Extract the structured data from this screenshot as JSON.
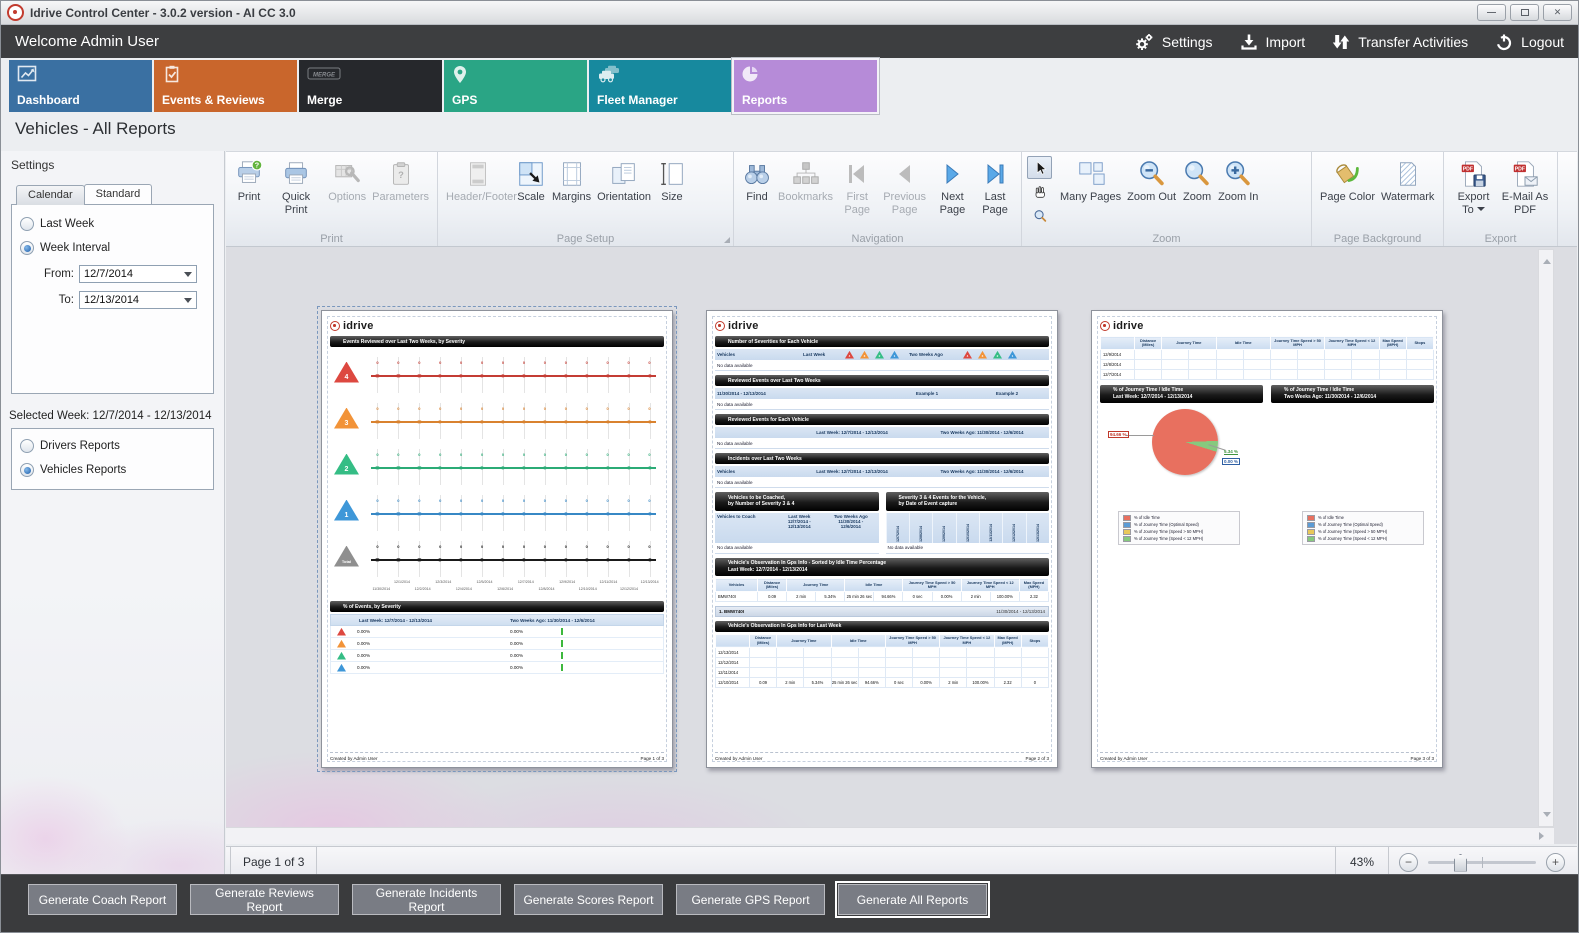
{
  "window": {
    "title": "Idrive Control Center - 3.0.2 version - AI CC 3.0"
  },
  "header": {
    "welcome": "Welcome Admin User",
    "settings": "Settings",
    "import": "Import",
    "transfer": "Transfer Activities",
    "logout": "Logout"
  },
  "tabs": [
    {
      "label": "Dashboard",
      "color": "#3a70a2",
      "selected": false
    },
    {
      "label": "Events & Reviews",
      "color": "#c9662c",
      "selected": false
    },
    {
      "label": "Merge",
      "color": "#26282c",
      "selected": false,
      "icon_text": "MERGE"
    },
    {
      "label": "GPS",
      "color": "#2aa585",
      "selected": false
    },
    {
      "label": "Fleet Manager",
      "color": "#17899e",
      "selected": false
    },
    {
      "label": "Reports",
      "color": "#b68bd8",
      "selected": true
    }
  ],
  "page_title": "Vehicles - All Reports",
  "sidebar": {
    "title": "Settings",
    "tabs": [
      {
        "label": "Calendar",
        "active": false
      },
      {
        "label": "Standard",
        "active": true
      }
    ],
    "options": [
      {
        "label": "Last Week",
        "selected": false
      },
      {
        "label": "Week Interval",
        "selected": true
      }
    ],
    "from_label": "From:",
    "from_value": "12/7/2014",
    "to_label": "To:",
    "to_value": "12/13/2014",
    "selected_week_label": "Selected Week:",
    "selected_week_value": "12/7/2014 - 12/13/2014",
    "report_types": [
      {
        "label": "Drivers Reports",
        "selected": false
      },
      {
        "label": "Vehicles Reports",
        "selected": true
      }
    ]
  },
  "ribbon": {
    "groups": [
      {
        "label": "Print",
        "items": [
          "Print",
          "Quick Print",
          "Options",
          "Parameters"
        ]
      },
      {
        "label": "Page Setup",
        "items": [
          "Header/Footer",
          "Scale",
          "Margins",
          "Orientation",
          "Size"
        ]
      },
      {
        "label": "Navigation",
        "items": [
          "Find",
          "Bookmarks",
          "First Page",
          "Previous Page",
          "Next Page",
          "Last Page"
        ]
      },
      {
        "label": "Zoom",
        "items": [
          "Many Pages",
          "Zoom Out",
          "Zoom",
          "Zoom In"
        ]
      },
      {
        "label": "Page Background",
        "items": [
          "Page Color",
          "Watermark"
        ]
      },
      {
        "label": "Export",
        "items": [
          "Export To",
          "E-Mail As PDF"
        ]
      }
    ]
  },
  "statusbar": {
    "page_text": "Page 1 of 3",
    "zoom_value": "43%"
  },
  "footer_buttons": [
    {
      "label": "Generate Coach Report",
      "focused": false
    },
    {
      "label": "Generate Reviews Report",
      "focused": false
    },
    {
      "label": "Generate Incidents Report",
      "focused": false
    },
    {
      "label": "Generate Scores Report",
      "focused": false
    },
    {
      "label": "Generate GPS Report",
      "focused": false
    },
    {
      "label": "Generate All Reports",
      "focused": true
    }
  ],
  "preview": {
    "page1": {
      "logo": "idrive",
      "band_events": "Events Reviewed over Last Two Weeks, by Severity",
      "point_label": "0",
      "point_count": 14,
      "severities": [
        {
          "level": "4",
          "color": "#dd4840",
          "line": "#c43c34"
        },
        {
          "level": "3",
          "color": "#f29338",
          "line": "#d9822f"
        },
        {
          "level": "2",
          "color": "#35bd85",
          "line": "#2bab76"
        },
        {
          "level": "1",
          "color": "#3e97d8",
          "line": "#3788c5"
        },
        {
          "level": "Total",
          "color": "#8f8f8f",
          "line": "#1a1a1a"
        }
      ],
      "dates": [
        "11/30/2014",
        "12/1/2014",
        "12/2/2014",
        "12/3/2014",
        "12/4/2014",
        "12/5/2014",
        "12/6/2014",
        "12/7/2014",
        "12/8/2014",
        "12/9/2014",
        "12/10/2014",
        "12/11/2014",
        "12/12/2014",
        "12/13/2014"
      ],
      "band_pct": "% of Events, by Severity",
      "table": {
        "col_last": "Last Week: 12/7/2014 - 12/13/2014",
        "col_two": "Two Weeks Ago: 11/30/2014 - 12/6/2014",
        "rows": [
          {
            "color": "#dd4840",
            "last": "0.00%",
            "two": "0.00%"
          },
          {
            "color": "#f29338",
            "last": "0.00%",
            "two": "0.00%"
          },
          {
            "color": "#35bd85",
            "last": "0.00%",
            "two": "0.00%"
          },
          {
            "color": "#3e97d8",
            "last": "0.00%",
            "two": "0.00%"
          }
        ]
      },
      "footer_left": "Created by Admin User",
      "footer_right": "Page 1 of 3"
    },
    "page2": {
      "logo": "idrive",
      "s1": {
        "title": "Number of Severities for Each Vehicle",
        "vehicles": "Vehicles",
        "last_week": "Last Week",
        "two_weeks": "Two Weeks Ago",
        "triangles": [
          {
            "label": "4",
            "color": "#dd4840"
          },
          {
            "label": "3",
            "color": "#f29338"
          },
          {
            "label": "2",
            "color": "#35bd85"
          },
          {
            "label": "1",
            "color": "#3e97d8"
          }
        ],
        "nodata": "No data available"
      },
      "s2": {
        "title": "Reviewed Events over Last Two Weeks",
        "range": "11/30/2014 - 12/13/2014",
        "example1": "Example 1",
        "example2": "Example 2",
        "nodata": "No data available"
      },
      "s3": {
        "title": "Reviewed Events for Each Vehicle",
        "last": "Last Week: 12/7/2014 - 12/13/2014",
        "two": "Two Weeks Ago: 11/30/2014 - 12/6/2014",
        "nodata": "No data available"
      },
      "s4": {
        "title": "Incidents over Last Two Weeks",
        "vehicles": "Vehicles",
        "last": "Last Week: 12/7/2014 - 12/13/2014",
        "two": "Two Weeks Ago: 11/30/2014 - 12/6/2014",
        "nodata": "No data available"
      },
      "s5": {
        "title1": "Vehicles to be Coached,",
        "title2": "by Number of Severity 3 & 4",
        "col1": "Vehicles to Coach",
        "col2": "Last Week\n12/7/2014 -\n12/13/2014",
        "col3": "Two Weeks Ago\n11/30/2014 -\n12/6/2014",
        "nodata": "No data available"
      },
      "s6": {
        "title1": "Severity 3 & 4 Events for the Vehicle,",
        "title2": "by Date of Event capture",
        "dates": [
          "12/7/2014",
          "12/8/2014",
          "12/9/2014",
          "12/10/2014",
          "12/11/2014",
          "12/12/2014",
          "12/13/2014"
        ],
        "nodata": "No data available"
      },
      "s7": {
        "title1": "Vehicle's Observation In Gps Info - Sorted by Idle Time Percentage",
        "title2": "Last Week: 12/7/2014 - 12/13/2014",
        "header": [
          {
            "label": "Vehicles",
            "span": 1
          },
          {
            "label": "Distance (Miles)",
            "span": 1
          },
          {
            "label": "Journey Time",
            "span": 2
          },
          {
            "label": "Idle Time",
            "span": 2
          },
          {
            "label": "Journey Time Speed > 50 MPH",
            "span": 2
          },
          {
            "label": "Journey Time Speed < 12 MPH",
            "span": 2
          },
          {
            "label": "Max Speed (MPH)",
            "span": 1
          }
        ],
        "rows": [
          [
            "BMW740I",
            "0.09",
            "2 min",
            "5.34%",
            "25 min 26 sec",
            "94.66%",
            "0 sec",
            "0.00%",
            "2 min",
            "100.00%",
            "2.32"
          ]
        ]
      },
      "s8": {
        "left": "1. BMW740I",
        "right": "11/30/2014 - 12/13/2014"
      },
      "s9": {
        "title": "Vehicle's Observation In Gps Info for Last Week",
        "header": [
          {
            "label": "",
            "span": 1
          },
          {
            "label": "Distance (Miles)",
            "span": 1
          },
          {
            "label": "Journey Time",
            "span": 2
          },
          {
            "label": "Idle Time",
            "span": 2
          },
          {
            "label": "Journey Time Speed > 50 MPH",
            "span": 2
          },
          {
            "label": "Journey Time Speed < 12 MPH",
            "span": 2
          },
          {
            "label": "Max Speed (MPH)",
            "span": 1
          },
          {
            "label": "Stops",
            "span": 1
          }
        ],
        "rows": [
          [
            "12/13/2014",
            "",
            "",
            "",
            "",
            "",
            "",
            "",
            "",
            "",
            "",
            ""
          ],
          [
            "12/12/2014",
            "",
            "",
            "",
            "",
            "",
            "",
            "",
            "",
            "",
            "",
            ""
          ],
          [
            "12/11/2014",
            "",
            "",
            "",
            "",
            "",
            "",
            "",
            "",
            "",
            "",
            ""
          ],
          [
            "12/10/2014",
            "0.09",
            "2 min",
            "5.34%",
            "25 min 26 sec",
            "94.66%",
            "0 sec",
            "0.00%",
            "2 min",
            "100.00%",
            "2.32",
            "0"
          ]
        ]
      },
      "footer_left": "Created by Admin User",
      "footer_right": "Page 2 of 3"
    },
    "page3": {
      "logo": "idrive",
      "table": {
        "header": [
          {
            "label": "",
            "span": 1
          },
          {
            "label": "Distance (Miles)",
            "span": 1
          },
          {
            "label": "Journey Time",
            "span": 2
          },
          {
            "label": "Idle Time",
            "span": 2
          },
          {
            "label": "Journey Time Speed > 50 MPH",
            "span": 2
          },
          {
            "label": "Journey Time Speed < 12 MPH",
            "span": 2
          },
          {
            "label": "Max Speed (MPH)",
            "span": 1
          },
          {
            "label": "Stops",
            "span": 1
          }
        ],
        "rows": [
          [
            "12/9/2014",
            "",
            "",
            "",
            "",
            "",
            "",
            "",
            "",
            "",
            "",
            ""
          ],
          [
            "12/8/2014",
            "",
            "",
            "",
            "",
            "",
            "",
            "",
            "",
            "",
            "",
            ""
          ],
          [
            "12/7/2014",
            "",
            "",
            "",
            "",
            "",
            "",
            "",
            "",
            "",
            "",
            ""
          ]
        ]
      },
      "band_left1": "% of Journey Time / Idle Time",
      "band_left2": "Last Week: 12/7/2014 - 12/13/2014",
      "band_right1": "% of Journey Time / Idle Time",
      "band_right2": "Two Weeks Ago: 11/30/2014 - 12/6/2014",
      "chart_data": {
        "type": "pie",
        "values": [
          {
            "label": "% of Idle Time",
            "pct": 94.66,
            "color": "#e8705f"
          },
          {
            "label": "% of Journey Time (Speed < 12 MPH)",
            "pct": 5.34,
            "color": "#86c97e"
          },
          {
            "label": "% of Journey Time (Optimal Speed)",
            "pct": 0.0,
            "color": "#5b9bd5"
          }
        ],
        "labels": {
          "idle": "94.66 %",
          "low": "5.34 %",
          "optimal": "0.00 %"
        }
      },
      "legend": [
        {
          "label": "% of Idle Time",
          "color": "#e8705f"
        },
        {
          "label": "% of Journey Time (Optimal Speed)",
          "color": "#5b9bd5"
        },
        {
          "label": "% of Journey Time (Speed > 50 MPH)",
          "color": "#e8c85a"
        },
        {
          "label": "% of Journey Time (Speed < 12 MPH)",
          "color": "#86c97e"
        }
      ],
      "footer_left": "Created by Admin User",
      "footer_right": "Page 3 of 3"
    }
  }
}
